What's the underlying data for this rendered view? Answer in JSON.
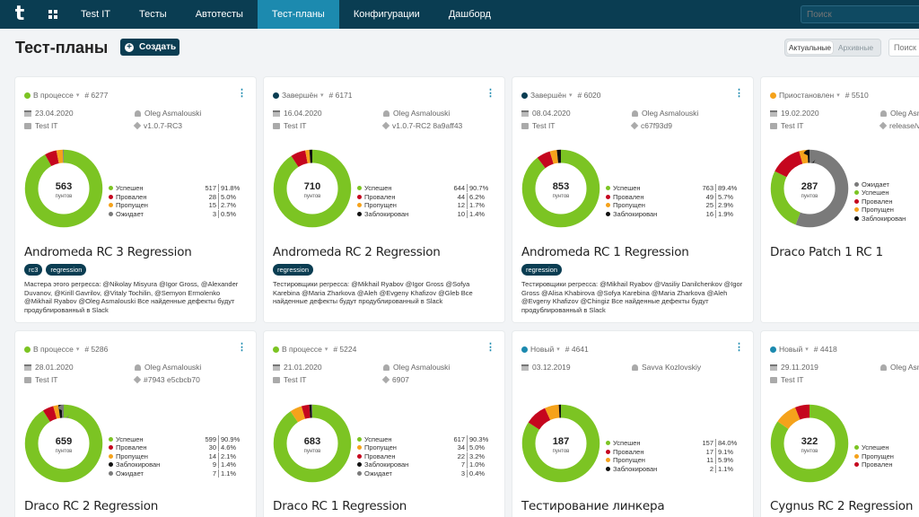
{
  "nav": {
    "logo": "t",
    "items": [
      {
        "label": "Test IT",
        "active": false
      },
      {
        "label": "Тесты",
        "active": false
      },
      {
        "label": "Автотесты",
        "active": false
      },
      {
        "label": "Тест-планы",
        "active": true
      },
      {
        "label": "Конфигурации",
        "active": false
      },
      {
        "label": "Дашборд",
        "active": false
      }
    ],
    "search_placeholder": "Поиск"
  },
  "header": {
    "title": "Тест-планы",
    "create_label": "Создать",
    "toggle": {
      "active": "Актуальные",
      "archived": "Архивные"
    },
    "filter_placeholder": "Поиск"
  },
  "colors": {
    "passed": "#7cc423",
    "failed": "#c5061e",
    "skipped": "#f5a21b",
    "blocked": "#111111",
    "pending": "#7a7a7a",
    "brand": "#0a3d52"
  },
  "cards": [
    {
      "status": "В процессе",
      "status_color": "#7cc423",
      "id": "# 6277",
      "date": "23.04.2020",
      "author": "Oleg Asmalouski",
      "project": "Test IT",
      "build": "v1.0.7-RC3",
      "total": "563",
      "total_label": "пунтов",
      "segments": [
        {
          "color": "#7cc423",
          "value": 517
        },
        {
          "color": "#c5061e",
          "value": 28
        },
        {
          "color": "#f5a21b",
          "value": 15
        },
        {
          "color": "#7a7a7a",
          "value": 3
        }
      ],
      "legend": [
        {
          "name": "Успешен",
          "value": "517",
          "pct": "91.8%",
          "color": "#7cc423"
        },
        {
          "name": "Провален",
          "value": "28",
          "pct": "5.0%",
          "color": "#c5061e"
        },
        {
          "name": "Пропущен",
          "value": "15",
          "pct": "2.7%",
          "color": "#f5a21b"
        },
        {
          "name": "Ожидает",
          "value": "3",
          "pct": "0.5%",
          "color": "#7a7a7a"
        }
      ],
      "title": "Andromeda RC 3 Regression",
      "tags": [
        "rc3",
        "regression"
      ],
      "description": "Мастера этого регресса: @Nikolay Misyura @Igor Gross, @Alexander Duvanov, @Kirill Gavrilov, @Vitaly Tochilin, @Semyon Ermolenko @Mikhail Ryabov @Oleg Asmalouski Все найденные дефекты будут продублированный в Slack"
    },
    {
      "status": "Завершён",
      "status_color": "#0a3d52",
      "id": "# 6171",
      "date": "16.04.2020",
      "author": "Oleg Asmalouski",
      "project": "Test IT",
      "build": "v1.0.7-RC2 8a9aff43",
      "total": "710",
      "total_label": "пунтов",
      "segments": [
        {
          "color": "#7cc423",
          "value": 644
        },
        {
          "color": "#c5061e",
          "value": 44
        },
        {
          "color": "#f5a21b",
          "value": 12
        },
        {
          "color": "#111111",
          "value": 10
        }
      ],
      "legend": [
        {
          "name": "Успешен",
          "value": "644",
          "pct": "90.7%",
          "color": "#7cc423"
        },
        {
          "name": "Провален",
          "value": "44",
          "pct": "6.2%",
          "color": "#c5061e"
        },
        {
          "name": "Пропущен",
          "value": "12",
          "pct": "1.7%",
          "color": "#f5a21b"
        },
        {
          "name": "Заблокирован",
          "value": "10",
          "pct": "1.4%",
          "color": "#111111"
        }
      ],
      "title": "Andromeda RC 2 Regression",
      "tags": [
        "regression"
      ],
      "description": "Тестировщики регресса: @Mikhail Ryabov @Igor Gross @Sofya Karebina @Maria Zharkova @Aleh @Evgeny Khafizov @Gleb Все найденные дефекты будут продублированный в Slack"
    },
    {
      "status": "Завершён",
      "status_color": "#0a3d52",
      "id": "# 6020",
      "date": "08.04.2020",
      "author": "Oleg Asmalouski",
      "project": "Test IT",
      "build": "c67f93d9",
      "total": "853",
      "total_label": "пунтов",
      "segments": [
        {
          "color": "#7cc423",
          "value": 763
        },
        {
          "color": "#c5061e",
          "value": 49
        },
        {
          "color": "#f5a21b",
          "value": 25
        },
        {
          "color": "#111111",
          "value": 16
        }
      ],
      "legend": [
        {
          "name": "Успешен",
          "value": "763",
          "pct": "89.4%",
          "color": "#7cc423"
        },
        {
          "name": "Провален",
          "value": "49",
          "pct": "5.7%",
          "color": "#c5061e"
        },
        {
          "name": "Пропущен",
          "value": "25",
          "pct": "2.9%",
          "color": "#f5a21b"
        },
        {
          "name": "Заблокирован",
          "value": "16",
          "pct": "1.9%",
          "color": "#111111"
        }
      ],
      "title": "Andromeda RC 1 Regression",
      "tags": [
        "regression"
      ],
      "description": "Тестировщики регресса: @Mikhail Ryabov @Vasiliy Danilchenkov @Igor Gross @Alisa Khabirova @Sofya Karebina @Maria Zharkova @Aleh @Evgeny Khafizov @Chingiz Все найденные дефекты будут продублированный в Slack"
    },
    {
      "status": "Приостановлен",
      "status_color": "#f5a21b",
      "id": "# 5510",
      "date": "19.02.2020",
      "author": "Oleg Asm",
      "project": "Test IT",
      "build": "release/v",
      "total": "287",
      "total_label": "пунтов",
      "segments": [
        {
          "color": "#7a7a7a",
          "value": 160
        },
        {
          "color": "#7cc423",
          "value": 76
        },
        {
          "color": "#c5061e",
          "value": 38
        },
        {
          "color": "#f5a21b",
          "value": 10
        },
        {
          "color": "#111111",
          "value": 3
        }
      ],
      "legend": [
        {
          "name": "Ожидает",
          "value": "",
          "pct": "",
          "color": "#7a7a7a"
        },
        {
          "name": "Успешен",
          "value": "",
          "pct": "",
          "color": "#7cc423"
        },
        {
          "name": "Провален",
          "value": "",
          "pct": "",
          "color": "#c5061e"
        },
        {
          "name": "Пропущен",
          "value": "",
          "pct": "",
          "color": "#f5a21b"
        },
        {
          "name": "Заблокирован",
          "value": "",
          "pct": "",
          "color": "#111111"
        }
      ],
      "title": "Draco Patch 1 RC 1",
      "tags": [],
      "description": ""
    },
    {
      "status": "В процессе",
      "status_color": "#7cc423",
      "id": "# 5286",
      "date": "28.01.2020",
      "author": "Oleg Asmalouski",
      "project": "Test IT",
      "build": "#7943 e5cbcb70",
      "total": "659",
      "total_label": "пунтов",
      "segments": [
        {
          "color": "#7cc423",
          "value": 599
        },
        {
          "color": "#c5061e",
          "value": 30
        },
        {
          "color": "#f5a21b",
          "value": 14
        },
        {
          "color": "#111111",
          "value": 9
        },
        {
          "color": "#7a7a7a",
          "value": 7
        }
      ],
      "legend": [
        {
          "name": "Успешен",
          "value": "599",
          "pct": "90.9%",
          "color": "#7cc423"
        },
        {
          "name": "Провален",
          "value": "30",
          "pct": "4.6%",
          "color": "#c5061e"
        },
        {
          "name": "Пропущен",
          "value": "14",
          "pct": "2.1%",
          "color": "#f5a21b"
        },
        {
          "name": "Заблокирован",
          "value": "9",
          "pct": "1.4%",
          "color": "#111111"
        },
        {
          "name": "Ожидает",
          "value": "7",
          "pct": "1.1%",
          "color": "#7a7a7a"
        }
      ],
      "title": "Draco RC 2 Regression",
      "tags": [],
      "description": ""
    },
    {
      "status": "В процессе",
      "status_color": "#7cc423",
      "id": "# 5224",
      "date": "21.01.2020",
      "author": "Oleg Asmalouski",
      "project": "Test IT",
      "build": "6907",
      "total": "683",
      "total_label": "пунтов",
      "segments": [
        {
          "color": "#7cc423",
          "value": 617
        },
        {
          "color": "#f5a21b",
          "value": 34
        },
        {
          "color": "#c5061e",
          "value": 22
        },
        {
          "color": "#111111",
          "value": 7
        },
        {
          "color": "#7a7a7a",
          "value": 3
        }
      ],
      "legend": [
        {
          "name": "Успешен",
          "value": "617",
          "pct": "90.3%",
          "color": "#7cc423"
        },
        {
          "name": "Пропущен",
          "value": "34",
          "pct": "5.0%",
          "color": "#f5a21b"
        },
        {
          "name": "Провален",
          "value": "22",
          "pct": "3.2%",
          "color": "#c5061e"
        },
        {
          "name": "Заблокирован",
          "value": "7",
          "pct": "1.0%",
          "color": "#111111"
        },
        {
          "name": "Ожидает",
          "value": "3",
          "pct": "0.4%",
          "color": "#7a7a7a"
        }
      ],
      "title": "Draco RC 1 Regression",
      "tags": [],
      "description": ""
    },
    {
      "status": "Новый",
      "status_color": "#1c8aaf",
      "id": "# 4641",
      "date": "03.12.2019",
      "author": "Savva Kozlovskiy",
      "project": "",
      "build": "",
      "total": "187",
      "total_label": "пунтов",
      "segments": [
        {
          "color": "#7cc423",
          "value": 157
        },
        {
          "color": "#c5061e",
          "value": 17
        },
        {
          "color": "#f5a21b",
          "value": 11
        },
        {
          "color": "#111111",
          "value": 2
        }
      ],
      "legend": [
        {
          "name": "Успешен",
          "value": "157",
          "pct": "84.0%",
          "color": "#7cc423"
        },
        {
          "name": "Провален",
          "value": "17",
          "pct": "9.1%",
          "color": "#c5061e"
        },
        {
          "name": "Пропущен",
          "value": "11",
          "pct": "5.9%",
          "color": "#f5a21b"
        },
        {
          "name": "Заблокирован",
          "value": "2",
          "pct": "1.1%",
          "color": "#111111"
        }
      ],
      "title": "Тестирование линкера",
      "tags": [],
      "description": ""
    },
    {
      "status": "Новый",
      "status_color": "#1c8aaf",
      "id": "# 4418",
      "date": "29.11.2019",
      "author": "Oleg Asm",
      "project": "Test IT",
      "build": "",
      "total": "322",
      "total_label": "пунтов",
      "segments": [
        {
          "color": "#7cc423",
          "value": 272
        },
        {
          "color": "#f5a21b",
          "value": 30
        },
        {
          "color": "#c5061e",
          "value": 20
        }
      ],
      "legend": [
        {
          "name": "Успешен",
          "value": "",
          "pct": "",
          "color": "#7cc423"
        },
        {
          "name": "Пропущен",
          "value": "",
          "pct": "",
          "color": "#f5a21b"
        },
        {
          "name": "Провален",
          "value": "",
          "pct": "",
          "color": "#c5061e"
        }
      ],
      "title": "Cygnus RC 2 Regression",
      "tags": [],
      "description": ""
    }
  ]
}
